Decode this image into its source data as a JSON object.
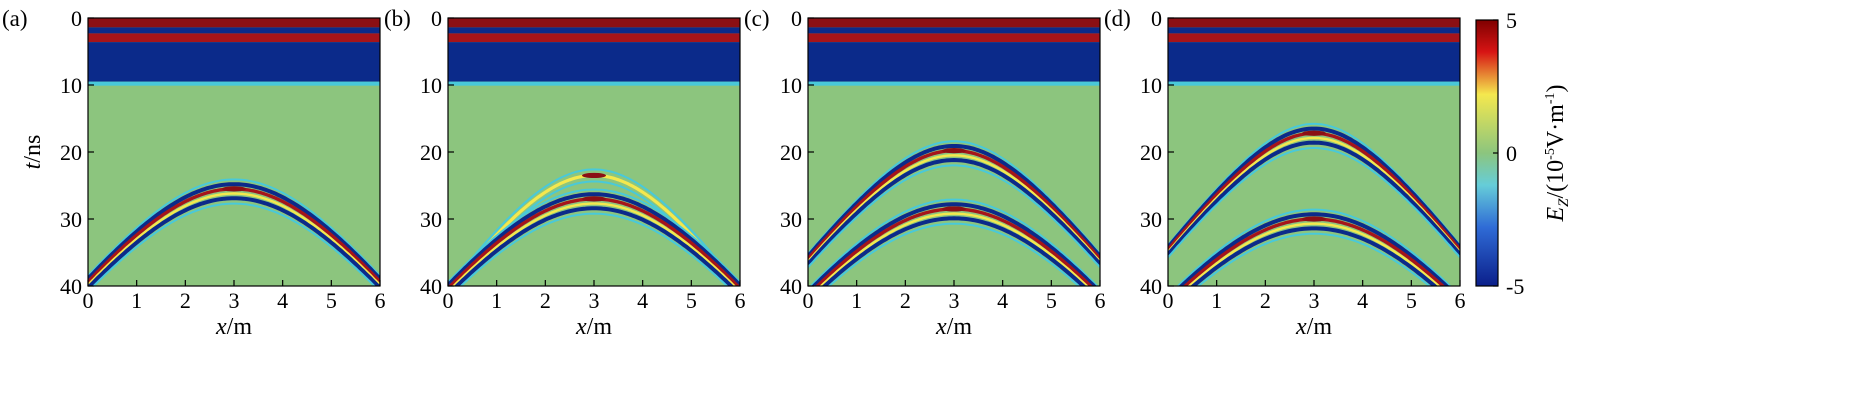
{
  "figure": {
    "colorbar": {
      "label": "E_Z/(10⁻⁵V·m⁻¹)",
      "label_parts": {
        "sym": "E",
        "sub": "Z",
        "unit_pre": "/(10",
        "unit_exp": "-5",
        "unit_mid": "V·m",
        "unit_exp2": "-1",
        "unit_post": ")"
      },
      "ticks": [
        "5",
        "0",
        "-5"
      ],
      "range": [
        -5,
        5
      ],
      "colormap": "jet"
    }
  },
  "chart_data": [
    {
      "type": "heatmap",
      "panel_label": "(a)",
      "xlabel": "x/m",
      "ylabel": "t/ns",
      "xlim": [
        0,
        6
      ],
      "ylim": [
        40,
        0
      ],
      "xticks": [
        "0",
        "1",
        "2",
        "3",
        "4",
        "5",
        "6"
      ],
      "yticks": [
        "0",
        "10",
        "20",
        "30",
        "40"
      ],
      "direct_wave_ns": [
        0.5,
        3.0,
        9.5
      ],
      "hyperbolas": [
        {
          "apex_x_m": 3.0,
          "apex_t_ns": 25.5,
          "limb_velocity_m_per_ns": 0.2
        }
      ]
    },
    {
      "type": "heatmap",
      "panel_label": "(b)",
      "xlabel": "x/m",
      "ylabel": "t/ns",
      "xlim": [
        0,
        6
      ],
      "ylim": [
        40,
        0
      ],
      "xticks": [
        "0",
        "1",
        "2",
        "3",
        "4",
        "5",
        "6"
      ],
      "yticks": [
        "0",
        "10",
        "20",
        "30",
        "40"
      ],
      "direct_wave_ns": [
        0.5,
        3.0,
        9.5
      ],
      "hyperbolas": [
        {
          "apex_x_m": 3.0,
          "apex_t_ns": 23.5,
          "limb_velocity_m_per_ns": 0.18
        },
        {
          "apex_x_m": 3.0,
          "apex_t_ns": 27.0,
          "limb_velocity_m_per_ns": 0.2
        }
      ]
    },
    {
      "type": "heatmap",
      "panel_label": "(c)",
      "xlabel": "x/m",
      "ylabel": "t/ns",
      "xlim": [
        0,
        6
      ],
      "ylim": [
        40,
        0
      ],
      "xticks": [
        "0",
        "1",
        "2",
        "3",
        "4",
        "5",
        "6"
      ],
      "yticks": [
        "0",
        "10",
        "20",
        "30",
        "40"
      ],
      "direct_wave_ns": [
        0.5,
        3.0,
        9.5
      ],
      "hyperbolas": [
        {
          "apex_x_m": 3.0,
          "apex_t_ns": 19.8,
          "limb_velocity_m_per_ns": 0.2
        },
        {
          "apex_x_m": 3.0,
          "apex_t_ns": 28.5,
          "limb_velocity_m_per_ns": 0.2
        }
      ]
    },
    {
      "type": "heatmap",
      "panel_label": "(d)",
      "xlabel": "x/m",
      "ylabel": "t/ns",
      "xlim": [
        0,
        6
      ],
      "ylim": [
        40,
        0
      ],
      "xticks": [
        "0",
        "1",
        "2",
        "3",
        "4",
        "5",
        "6"
      ],
      "yticks": [
        "0",
        "10",
        "20",
        "30",
        "40"
      ],
      "direct_wave_ns": [
        0.5,
        3.0,
        9.5
      ],
      "hyperbolas": [
        {
          "apex_x_m": 3.0,
          "apex_t_ns": 17.2,
          "limb_velocity_m_per_ns": 0.2
        },
        {
          "apex_x_m": 3.0,
          "apex_t_ns": 30.0,
          "limb_velocity_m_per_ns": 0.2
        }
      ]
    }
  ]
}
